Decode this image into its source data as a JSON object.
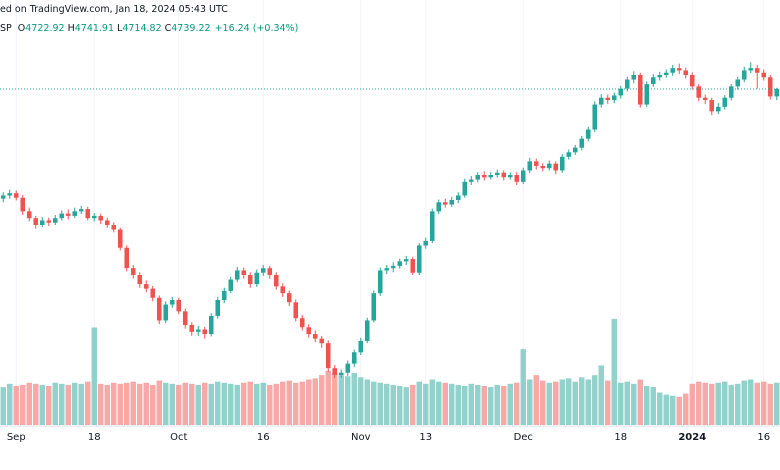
{
  "chart_data": {
    "type": "candlestick",
    "header": {
      "source": "ed on TradingView.com, Jan 18, 2024 05:43 UTC",
      "symbol": "SP",
      "ohlc": [
        {
          "key": "O",
          "value": "4722.92"
        },
        {
          "key": "H",
          "value": "4741.91"
        },
        {
          "key": "L",
          "value": "4714.82"
        },
        {
          "key": "C",
          "value": "4739.22"
        }
      ],
      "change": "+16.24 (+0.34%)"
    },
    "up_color": "#26a69a",
    "down_color": "#ef5350",
    "ylim": [
      4000,
      4935
    ],
    "volume_lim": [
      0,
      12000
    ],
    "grid": true,
    "categories": [
      null,
      null,
      "Sep",
      null,
      null,
      null,
      null,
      null,
      null,
      null,
      null,
      null,
      null,
      null,
      "18",
      null,
      null,
      null,
      null,
      null,
      null,
      null,
      null,
      null,
      null,
      null,
      null,
      "Oct",
      null,
      null,
      null,
      null,
      null,
      null,
      null,
      null,
      null,
      null,
      null,
      null,
      "16",
      null,
      null,
      null,
      null,
      null,
      null,
      null,
      null,
      null,
      null,
      null,
      null,
      null,
      null,
      "Nov",
      null,
      null,
      null,
      null,
      null,
      null,
      null,
      null,
      null,
      "13",
      null,
      null,
      null,
      null,
      null,
      null,
      null,
      null,
      null,
      null,
      null,
      null,
      null,
      null,
      "Dec",
      null,
      null,
      null,
      null,
      null,
      null,
      null,
      null,
      null,
      null,
      null,
      null,
      null,
      null,
      "18",
      null,
      null,
      null,
      null,
      null,
      null,
      null,
      null,
      null,
      null,
      "2024",
      null,
      null,
      null,
      null,
      null,
      null,
      null,
      null,
      null,
      null,
      "16",
      null,
      null
    ],
    "open": [
      4498,
      4505,
      4510,
      4500,
      4470,
      4455,
      4440,
      4450,
      4445,
      4455,
      4465,
      4460,
      4470,
      4475,
      4455,
      4460,
      4450,
      4440,
      4430,
      4390,
      4345,
      4330,
      4310,
      4300,
      4280,
      4230,
      4265,
      4275,
      4250,
      4220,
      4205,
      4210,
      4200,
      4240,
      4275,
      4295,
      4320,
      4340,
      4330,
      4310,
      4335,
      4345,
      4330,
      4305,
      4290,
      4270,
      4235,
      4215,
      4200,
      4190,
      4180,
      4125,
      4110,
      4115,
      4135,
      4160,
      4185,
      4230,
      4290,
      4340,
      4345,
      4350,
      4360,
      4365,
      4335,
      4395,
      4405,
      4470,
      4490,
      4485,
      4495,
      4505,
      4535,
      4540,
      4550,
      4545,
      4550,
      4555,
      4545,
      4550,
      4535,
      4560,
      4580,
      4570,
      4565,
      4575,
      4560,
      4590,
      4600,
      4610,
      4630,
      4650,
      4705,
      4720,
      4715,
      4725,
      4740,
      4760,
      4770,
      4705,
      4750,
      4765,
      4770,
      4775,
      4785,
      4780,
      4770,
      4745,
      4720,
      4715,
      4690,
      4700,
      4720,
      4745,
      4760,
      4780,
      4785,
      4775,
      4765,
      4722.92
    ],
    "high": [
      4512,
      4518,
      4516,
      4506,
      4478,
      4460,
      4458,
      4456,
      4462,
      4472,
      4474,
      4478,
      4482,
      4480,
      4466,
      4465,
      4456,
      4446,
      4434,
      4395,
      4352,
      4336,
      4318,
      4306,
      4285,
      4272,
      4282,
      4280,
      4256,
      4226,
      4218,
      4216,
      4246,
      4282,
      4302,
      4326,
      4348,
      4346,
      4336,
      4342,
      4352,
      4350,
      4336,
      4312,
      4296,
      4276,
      4242,
      4222,
      4208,
      4196,
      4186,
      4132,
      4122,
      4142,
      4166,
      4192,
      4236,
      4296,
      4346,
      4352,
      4358,
      4366,
      4372,
      4370,
      4400,
      4412,
      4476,
      4496,
      4498,
      4502,
      4512,
      4542,
      4548,
      4556,
      4558,
      4556,
      4562,
      4560,
      4556,
      4556,
      4566,
      4588,
      4586,
      4576,
      4582,
      4580,
      4596,
      4606,
      4616,
      4636,
      4656,
      4712,
      4728,
      4727,
      4732,
      4746,
      4766,
      4778,
      4775,
      4756,
      4772,
      4777,
      4782,
      4792,
      4795,
      4786,
      4776,
      4750,
      4727,
      4720,
      4708,
      4726,
      4750,
      4766,
      4788,
      4798,
      4792,
      4782,
      4770,
      4741.91
    ],
    "low": [
      4490,
      4498,
      4494,
      4462,
      4448,
      4432,
      4435,
      4438,
      4440,
      4450,
      4452,
      4455,
      4464,
      4450,
      4448,
      4442,
      4434,
      4424,
      4384,
      4338,
      4322,
      4302,
      4292,
      4272,
      4222,
      4224,
      4258,
      4244,
      4212,
      4196,
      4196,
      4190,
      4195,
      4234,
      4268,
      4290,
      4314,
      4322,
      4302,
      4304,
      4328,
      4322,
      4298,
      4282,
      4262,
      4228,
      4208,
      4192,
      4182,
      4170,
      4116,
      4103,
      4104,
      4108,
      4128,
      4154,
      4180,
      4226,
      4284,
      4332,
      4336,
      4344,
      4352,
      4330,
      4330,
      4388,
      4400,
      4464,
      4478,
      4480,
      4488,
      4500,
      4528,
      4534,
      4538,
      4540,
      4544,
      4538,
      4540,
      4528,
      4530,
      4554,
      4562,
      4558,
      4560,
      4552,
      4555,
      4584,
      4594,
      4604,
      4624,
      4645,
      4698,
      4706,
      4708,
      4718,
      4734,
      4752,
      4698,
      4700,
      4744,
      4758,
      4764,
      4768,
      4772,
      4762,
      4738,
      4712,
      4706,
      4682,
      4684,
      4694,
      4714,
      4738,
      4754,
      4774,
      4740,
      4758,
      4716,
      4714.82
    ],
    "close": [
      4505,
      4510,
      4500,
      4470,
      4455,
      4440,
      4450,
      4445,
      4455,
      4465,
      4460,
      4470,
      4475,
      4455,
      4460,
      4450,
      4440,
      4430,
      4390,
      4345,
      4330,
      4310,
      4300,
      4280,
      4230,
      4265,
      4275,
      4250,
      4220,
      4205,
      4210,
      4200,
      4240,
      4275,
      4295,
      4320,
      4340,
      4330,
      4310,
      4335,
      4345,
      4330,
      4305,
      4290,
      4270,
      4235,
      4215,
      4200,
      4190,
      4180,
      4125,
      4110,
      4115,
      4135,
      4160,
      4185,
      4230,
      4290,
      4340,
      4345,
      4350,
      4360,
      4365,
      4335,
      4395,
      4405,
      4470,
      4490,
      4485,
      4495,
      4505,
      4535,
      4540,
      4550,
      4545,
      4550,
      4555,
      4545,
      4550,
      4535,
      4560,
      4580,
      4570,
      4565,
      4575,
      4560,
      4590,
      4600,
      4610,
      4630,
      4650,
      4705,
      4720,
      4715,
      4725,
      4740,
      4760,
      4770,
      4705,
      4750,
      4765,
      4770,
      4775,
      4785,
      4780,
      4770,
      4745,
      4720,
      4715,
      4690,
      4700,
      4720,
      4745,
      4760,
      4780,
      4785,
      4775,
      4765,
      4723,
      4739.22
    ],
    "volume": [
      3500,
      3800,
      3600,
      3700,
      3900,
      3800,
      3700,
      3600,
      3900,
      3800,
      3700,
      3900,
      3800,
      4000,
      9000,
      3800,
      3700,
      3900,
      3800,
      3900,
      4000,
      3800,
      3900,
      3700,
      4100,
      3900,
      3800,
      3700,
      3900,
      3800,
      3700,
      3900,
      3800,
      4000,
      3900,
      3800,
      3700,
      3900,
      4000,
      3800,
      3900,
      3700,
      3800,
      4000,
      4100,
      3900,
      4000,
      4200,
      4300,
      4600,
      5000,
      4800,
      4600,
      4500,
      4800,
      4400,
      4200,
      4000,
      3900,
      3800,
      3700,
      3600,
      3500,
      3700,
      4000,
      3800,
      4200,
      4000,
      3900,
      3800,
      3700,
      3600,
      3800,
      3700,
      3600,
      3500,
      3700,
      3600,
      3800,
      3900,
      7000,
      4200,
      4600,
      4100,
      3900,
      4000,
      4200,
      4300,
      4000,
      4400,
      4200,
      4600,
      5500,
      4100,
      9800,
      3900,
      4000,
      3800,
      4200,
      3600,
      3500,
      3000,
      2800,
      2700,
      2600,
      2900,
      3800,
      4000,
      3900,
      3800,
      3900,
      4000,
      3700,
      3800,
      4100,
      4200,
      3900,
      4000,
      3800,
      3900
    ]
  }
}
